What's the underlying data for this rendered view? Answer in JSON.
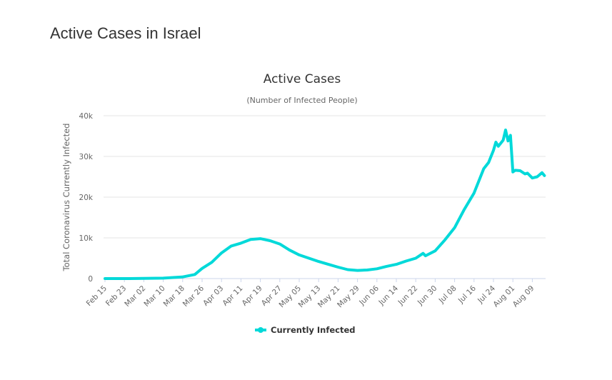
{
  "page": {
    "title": "Active Cases in Israel"
  },
  "chart_data": {
    "type": "line",
    "title": "Active Cases",
    "subtitle": "(Number of Infected People)",
    "xlabel": "",
    "ylabel": "Total Coronavirus Currently Infected",
    "ylim": [
      0,
      40000
    ],
    "yticks": [
      0,
      10000,
      20000,
      30000,
      40000
    ],
    "ytick_labels": [
      "0",
      "10k",
      "20k",
      "30k",
      "40k"
    ],
    "xtick_labels": [
      "Feb 15",
      "Feb 23",
      "Mar 02",
      "Mar 10",
      "Mar 18",
      "Mar 26",
      "Apr 03",
      "Apr 11",
      "Apr 19",
      "Apr 27",
      "May 05",
      "May 13",
      "May 21",
      "May 29",
      "Jun 06",
      "Jun 14",
      "Jun 22",
      "Jun 30",
      "Jul 08",
      "Jul 16",
      "Jul 24",
      "Aug 01",
      "Aug 09"
    ],
    "xtick_day_step": 8,
    "grid": true,
    "legend_position": "bottom-center",
    "color": "#00d9d9",
    "series": [
      {
        "name": "Currently Infected",
        "day_offsets_from_feb15": [
          0,
          10,
          24,
          32,
          37,
          40,
          44,
          48,
          52,
          56,
          60,
          64,
          68,
          72,
          76,
          80,
          84,
          88,
          92,
          96,
          100,
          104,
          108,
          112,
          116,
          120,
          124,
          128,
          131,
          132,
          136,
          140,
          144,
          148,
          152,
          156,
          158,
          160,
          161,
          162,
          164,
          165,
          166,
          167,
          168,
          169,
          171,
          173,
          174,
          176,
          178,
          180,
          181
        ],
        "values": [
          0,
          0,
          100,
          400,
          1000,
          2500,
          4000,
          6300,
          8000,
          8700,
          9600,
          9800,
          9300,
          8500,
          7000,
          5800,
          5000,
          4200,
          3500,
          2800,
          2200,
          2000,
          2100,
          2400,
          3000,
          3500,
          4300,
          5000,
          6200,
          5600,
          6800,
          9500,
          12500,
          17000,
          21000,
          27000,
          28500,
          31500,
          33500,
          32500,
          34000,
          36500,
          33800,
          35200,
          26200,
          26600,
          26500,
          25700,
          25900,
          24700,
          25000,
          26000,
          25300
        ]
      }
    ]
  }
}
